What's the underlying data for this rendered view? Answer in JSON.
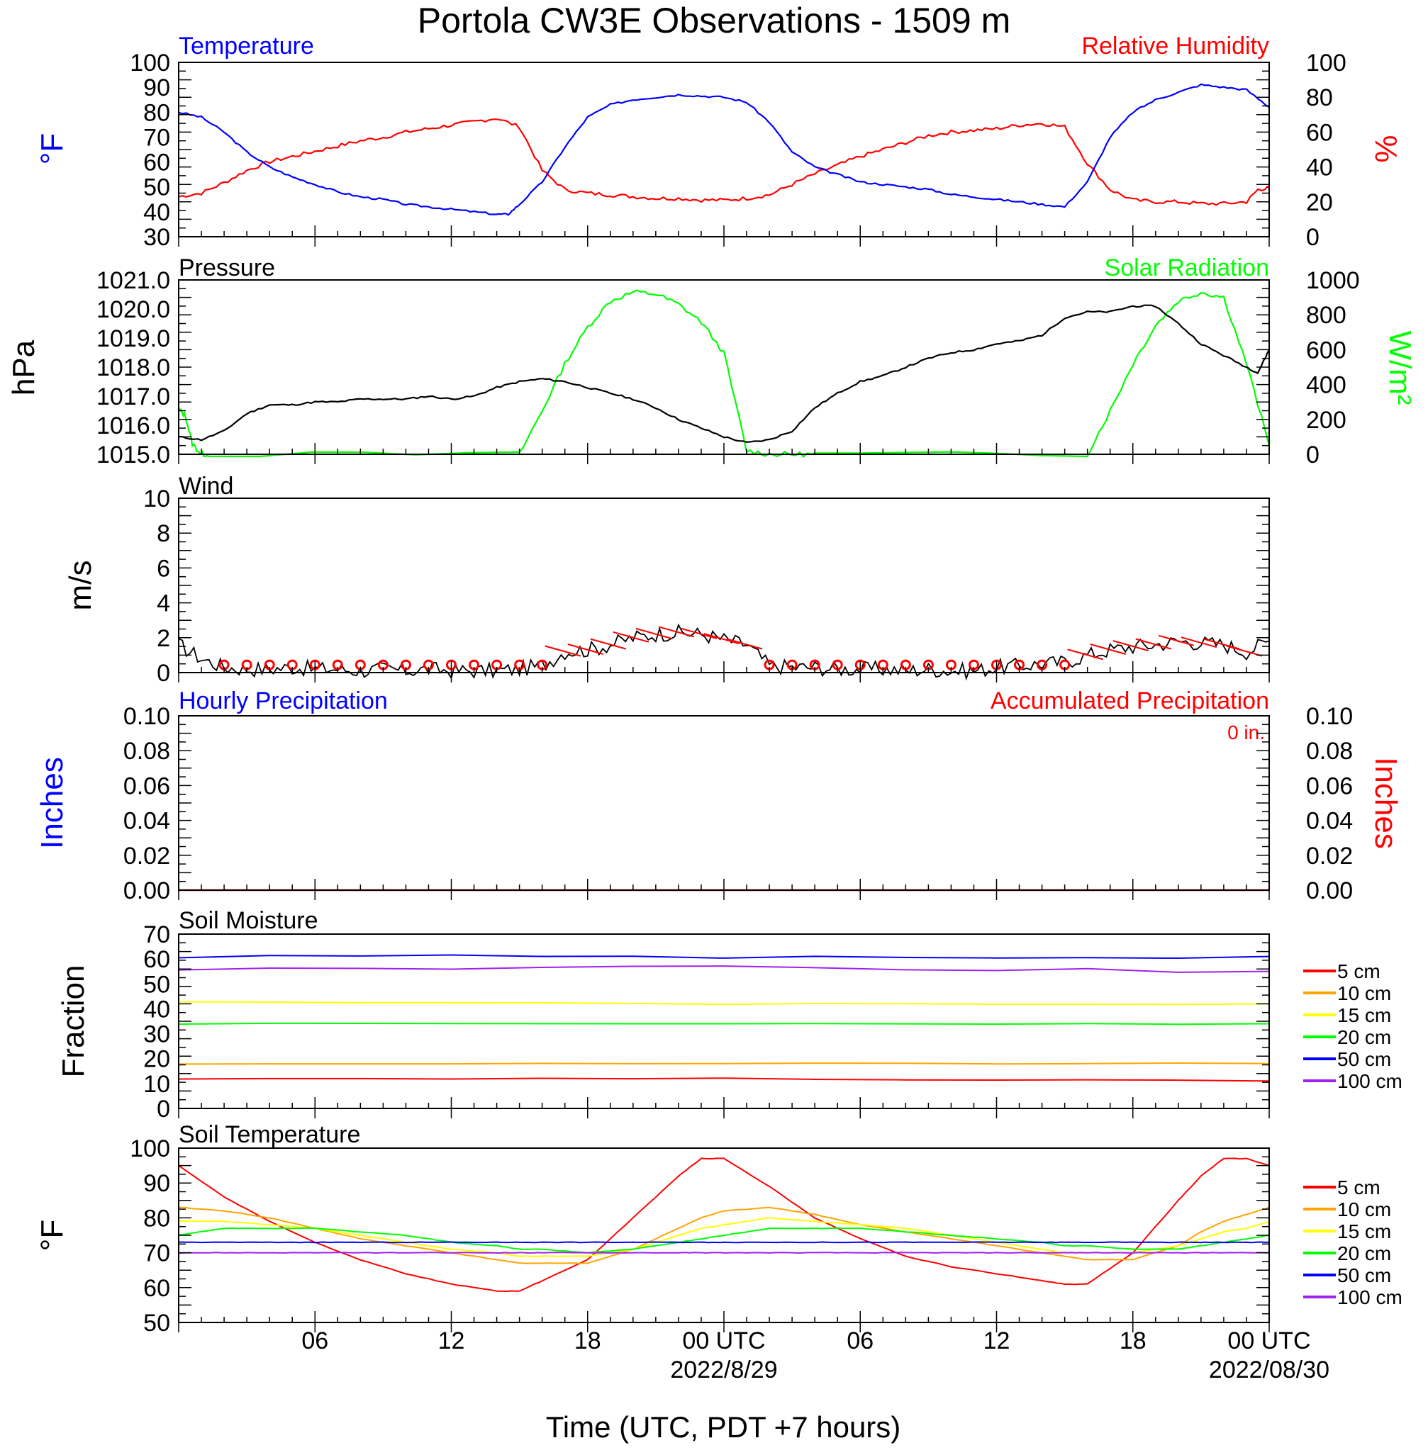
{
  "title": "Portola CW3E Observations - 1509 m",
  "xaxis": {
    "label": "Time (UTC, PDT +7 hours)",
    "ticks": [
      {
        "hour": 6,
        "label": "06"
      },
      {
        "hour": 12,
        "label": "12"
      },
      {
        "hour": 18,
        "label": "18"
      },
      {
        "hour": 24,
        "label": "00 UTC"
      },
      {
        "hour": 30,
        "label": "06"
      },
      {
        "hour": 36,
        "label": "12"
      },
      {
        "hour": 42,
        "label": "18"
      },
      {
        "hour": 48,
        "label": "00 UTC"
      }
    ],
    "dates": [
      {
        "hour": 24,
        "label": "2022/8/29"
      },
      {
        "hour": 48,
        "label": "2022/08/30"
      }
    ],
    "start_hour": 0,
    "end_hour": 48
  },
  "panels": {
    "temp_rh": {
      "left_title": "Temperature",
      "right_title": "Relative Humidity",
      "left_label": "°F",
      "right_label": "%",
      "left_ticks": [
        "30",
        "40",
        "50",
        "60",
        "70",
        "80",
        "90",
        "100"
      ],
      "right_ticks": [
        "0",
        "20",
        "40",
        "60",
        "80",
        "100"
      ]
    },
    "pressure": {
      "left_title": "Pressure",
      "right_title": "Solar Radiation",
      "left_label": "hPa",
      "right_label": "W/m²",
      "left_ticks": [
        "1015.0",
        "1016.0",
        "1017.0",
        "1018.0",
        "1019.0",
        "1020.0",
        "1021.0"
      ],
      "right_ticks": [
        "0",
        "200",
        "400",
        "600",
        "800",
        "1000"
      ]
    },
    "wind": {
      "left_title": "Wind",
      "left_label": "m/s",
      "left_ticks": [
        "0",
        "2",
        "4",
        "6",
        "8",
        "10"
      ]
    },
    "precip": {
      "left_title": "Hourly Precipitation",
      "right_title": "Accumulated Precipitation",
      "total": "0 in.",
      "left_label": "Inches",
      "right_label": "Inches",
      "left_ticks": [
        "0.00",
        "0.02",
        "0.04",
        "0.06",
        "0.08",
        "0.10"
      ],
      "right_ticks": [
        "0.00",
        "0.02",
        "0.04",
        "0.06",
        "0.08",
        "0.10"
      ]
    },
    "soil_moisture": {
      "left_title": "Soil Moisture",
      "left_label": "Fraction",
      "left_ticks": [
        "0",
        "10",
        "20",
        "30",
        "40",
        "50",
        "60",
        "70"
      ]
    },
    "soil_temp": {
      "left_title": "Soil Temperature",
      "left_label": "°F",
      "left_ticks": [
        "50",
        "60",
        "70",
        "80",
        "90",
        "100"
      ]
    }
  },
  "legend": [
    {
      "label": "5 cm",
      "color": "#ff0000"
    },
    {
      "label": "10 cm",
      "color": "#ffa500"
    },
    {
      "label": "15 cm",
      "color": "#ffff00"
    },
    {
      "label": "20 cm",
      "color": "#00ff00"
    },
    {
      "label": "50 cm",
      "color": "#0000ff"
    },
    {
      "label": "100 cm",
      "color": "#a020f0"
    }
  ],
  "colors": {
    "temperature": "#0000ff",
    "humidity": "#ff0000",
    "pressure": "#000000",
    "solar": "#00ff00",
    "wind": "#000000",
    "barb": "#ff0000",
    "accum": "#ff0000"
  },
  "chart_data": [
    {
      "type": "line",
      "title": "Temperature",
      "ylabel": "°F",
      "ylim": [
        30,
        100
      ],
      "x_hours": [
        0,
        1,
        2,
        3,
        4,
        5,
        6,
        7,
        8,
        9,
        10,
        11,
        12,
        13,
        14,
        14.5,
        15,
        16,
        17,
        18,
        19,
        20,
        21,
        22,
        23,
        24,
        25,
        26,
        27,
        28,
        29,
        30,
        31,
        32,
        33,
        34,
        35,
        36,
        37,
        38,
        39,
        40,
        41,
        42,
        43,
        44,
        45,
        46,
        47,
        48
      ],
      "values": [
        80,
        78,
        72,
        64,
        58,
        54,
        51,
        48,
        46,
        45,
        43,
        42,
        41,
        40,
        39,
        39,
        43,
        52,
        66,
        78,
        83,
        85,
        86,
        87,
        86.5,
        86,
        84,
        76,
        64,
        58,
        55,
        52,
        51,
        50,
        49,
        47,
        46,
        45,
        44,
        43,
        42,
        52,
        70,
        80,
        85,
        88,
        91,
        90,
        89,
        82
      ]
    },
    {
      "type": "line",
      "title": "Relative Humidity",
      "ylabel": "%",
      "ylim": [
        0,
        100
      ],
      "x_hours": [
        0,
        1,
        2,
        3,
        4,
        5,
        6,
        7,
        8,
        9,
        10,
        11,
        12,
        13,
        14,
        15,
        16,
        17,
        18,
        19,
        20,
        21,
        22,
        23,
        24,
        25,
        26,
        27,
        28,
        29,
        30,
        31,
        32,
        33,
        34,
        35,
        36,
        37,
        38,
        39,
        40,
        41,
        42,
        43,
        44,
        45,
        46,
        47,
        47.5,
        48
      ],
      "values": [
        23,
        25,
        31,
        38,
        43,
        46,
        49,
        52,
        55,
        57,
        60,
        62,
        64,
        66,
        68,
        63,
        38,
        27,
        25,
        24,
        23,
        22,
        22,
        21,
        21,
        22,
        24,
        30,
        36,
        41,
        46,
        50,
        54,
        58,
        60,
        61,
        62,
        64,
        65,
        63,
        42,
        27,
        21,
        20,
        20,
        19,
        19,
        20,
        27,
        28
      ]
    },
    {
      "type": "line",
      "title": "Pressure",
      "ylabel": "hPa",
      "ylim": [
        1015,
        1021
      ],
      "x_hours": [
        0,
        1,
        2,
        3,
        4,
        5,
        6,
        7,
        8,
        9,
        10,
        11,
        12,
        13,
        14,
        15,
        16,
        17,
        18,
        19,
        20,
        21,
        22,
        23,
        24,
        25,
        26,
        27,
        28,
        29,
        30,
        31,
        32,
        33,
        34,
        35,
        36,
        37,
        38,
        39,
        40,
        41,
        42,
        43,
        44,
        45,
        46,
        47,
        47.5,
        48
      ],
      "values": [
        1015.6,
        1015.5,
        1015.8,
        1016.4,
        1016.7,
        1016.7,
        1016.8,
        1016.8,
        1016.9,
        1016.9,
        1016.9,
        1017.0,
        1016.9,
        1017.0,
        1017.3,
        1017.5,
        1017.6,
        1017.5,
        1017.3,
        1017.1,
        1016.9,
        1016.6,
        1016.2,
        1015.9,
        1015.6,
        1015.4,
        1015.5,
        1015.8,
        1016.6,
        1017.1,
        1017.5,
        1017.7,
        1018.0,
        1018.3,
        1018.5,
        1018.6,
        1018.8,
        1018.9,
        1019.1,
        1019.7,
        1019.9,
        1019.9,
        1020.1,
        1020.1,
        1019.5,
        1018.8,
        1018.4,
        1018.0,
        1017.8,
        1018.6
      ]
    },
    {
      "type": "line",
      "title": "Solar Radiation",
      "ylabel": "W/m²",
      "ylim": [
        0,
        1000
      ],
      "x_hours": [
        0,
        0.3,
        0.6,
        1,
        1.3,
        15,
        16,
        17,
        18,
        19,
        20,
        21,
        22,
        23,
        24,
        25,
        26,
        27,
        28,
        40,
        41,
        42,
        43,
        44,
        45,
        46,
        47,
        48
      ],
      "values": [
        260,
        220,
        60,
        0,
        0,
        0,
        250,
        520,
        730,
        880,
        930,
        920,
        860,
        760,
        580,
        20,
        0,
        0,
        0,
        0,
        250,
        520,
        740,
        880,
        930,
        900,
        520,
        50
      ]
    },
    {
      "type": "line",
      "title": "Wind",
      "ylabel": "m/s",
      "ylim": [
        0,
        10
      ],
      "x_hours": [
        0,
        1,
        2,
        3,
        4,
        5,
        6,
        7,
        8,
        9,
        10,
        11,
        12,
        13,
        14,
        15,
        16,
        17,
        18,
        19,
        20,
        21,
        22,
        23,
        24,
        25,
        26,
        27,
        28,
        29,
        30,
        31,
        32,
        33,
        34,
        35,
        36,
        37,
        38,
        39,
        40,
        41,
        42,
        43,
        44,
        45,
        46,
        47,
        48
      ],
      "values": [
        1.6,
        0.8,
        0.3,
        0.2,
        0.2,
        0.3,
        0.2,
        0.2,
        0.1,
        0.2,
        0.1,
        0.2,
        0.1,
        0.1,
        0.1,
        0.2,
        0.4,
        1.2,
        1.3,
        1.6,
        2.0,
        2.2,
        2.3,
        2.2,
        1.9,
        1.6,
        0.4,
        0.3,
        0.3,
        0.2,
        0.2,
        0.2,
        0.1,
        0.2,
        0.1,
        0.1,
        0.3,
        0.4,
        0.5,
        0.6,
        1.0,
        1.3,
        1.5,
        1.6,
        1.8,
        1.7,
        1.6,
        1.2,
        1.8
      ]
    },
    {
      "type": "line",
      "title": "Hourly Precipitation",
      "ylabel": "Inches",
      "ylim": [
        0,
        0.1
      ],
      "x_hours": [
        0,
        48
      ],
      "values": [
        0,
        0
      ]
    },
    {
      "type": "line",
      "title": "Soil Moisture",
      "ylabel": "Fraction",
      "ylim": [
        0,
        70
      ],
      "x_hours": [
        0,
        24,
        48
      ],
      "series": [
        {
          "name": "5 cm",
          "values": [
            12,
            12,
            11
          ]
        },
        {
          "name": "10 cm",
          "values": [
            18,
            18,
            18
          ]
        },
        {
          "name": "15 cm",
          "values": [
            43,
            42,
            42
          ]
        },
        {
          "name": "20 cm",
          "values": [
            34,
            34,
            34
          ]
        },
        {
          "name": "50 cm",
          "values": [
            61,
            61,
            61
          ]
        },
        {
          "name": "100 cm",
          "values": [
            56,
            57,
            55
          ]
        }
      ]
    },
    {
      "type": "line",
      "title": "Soil Temperature",
      "ylabel": "°F",
      "ylim": [
        50,
        100
      ],
      "x_hours": [
        0,
        2,
        4,
        6,
        8,
        10,
        12,
        14,
        15,
        16,
        18,
        20,
        22,
        23,
        24,
        26,
        28,
        30,
        32,
        34,
        36,
        38,
        39,
        40,
        42,
        44,
        45,
        46,
        47,
        48
      ],
      "series": [
        {
          "name": "5 cm",
          "values": [
            95,
            86,
            79,
            73,
            68,
            64,
            61,
            59,
            59,
            62,
            68,
            80,
            92,
            97,
            97,
            89,
            80,
            74,
            69,
            66,
            64,
            62,
            61,
            61,
            70,
            85,
            92,
            97,
            97,
            95
          ]
        },
        {
          "name": "10 cm",
          "values": [
            83,
            82,
            80,
            77,
            74,
            72,
            70,
            68,
            67,
            67,
            67,
            71,
            77,
            80,
            82,
            83,
            81,
            78,
            76,
            74,
            72,
            70,
            69,
            68,
            68,
            72,
            76,
            79,
            81,
            83
          ]
        },
        {
          "name": "15 cm",
          "values": [
            79,
            79,
            78,
            77,
            75,
            73,
            71,
            70,
            69,
            69,
            69,
            71,
            75,
            77,
            78,
            80,
            79,
            78,
            77,
            75,
            73,
            71,
            70,
            70,
            70,
            72,
            74,
            76,
            77,
            79
          ]
        },
        {
          "name": "20 cm",
          "values": [
            75,
            77,
            77,
            77,
            76,
            75,
            73,
            72,
            71,
            71,
            70,
            71,
            73,
            74,
            75,
            77,
            77,
            77,
            76,
            75,
            74,
            73,
            72,
            72,
            71,
            71,
            72,
            73,
            74,
            75
          ]
        },
        {
          "name": "50 cm",
          "values": [
            73,
            73,
            73,
            73,
            73,
            73,
            73,
            73,
            73,
            73,
            73,
            73,
            73,
            73,
            73,
            73,
            73,
            73,
            73,
            73,
            73,
            73,
            73,
            73,
            73,
            73,
            73,
            73,
            73,
            73
          ]
        },
        {
          "name": "100 cm",
          "values": [
            70,
            70,
            70,
            70,
            70,
            70,
            70,
            70,
            70,
            70,
            70,
            70,
            70,
            70,
            70,
            70,
            70,
            70,
            70,
            70,
            70,
            70,
            70,
            70,
            70,
            70,
            70,
            70,
            70,
            70
          ]
        }
      ]
    }
  ]
}
